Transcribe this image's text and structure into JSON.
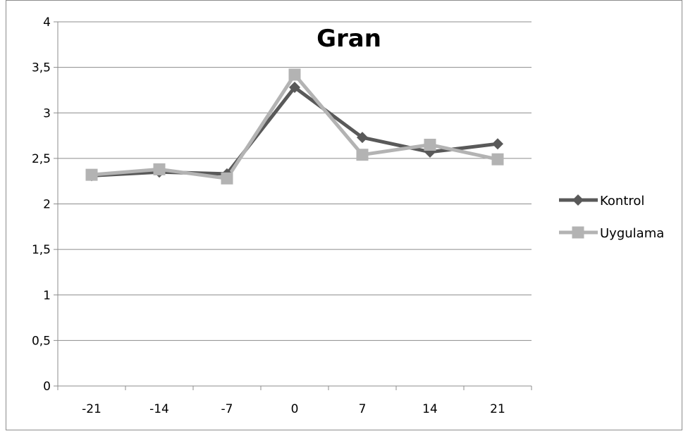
{
  "chart_data": {
    "type": "line",
    "title": "Gran",
    "xlabel": "",
    "ylabel": "",
    "categories": [
      "-21",
      "-14",
      "-7",
      "0",
      "7",
      "14",
      "21"
    ],
    "ylim": [
      0,
      4
    ],
    "yticks": [
      "0",
      "0,5",
      "1",
      "1,5",
      "2",
      "2,5",
      "3",
      "3,5",
      "4"
    ],
    "grid": true,
    "legend_position": "right",
    "series": [
      {
        "name": "Kontrol",
        "values": [
          2.31,
          2.35,
          2.33,
          3.28,
          2.73,
          2.57,
          2.66
        ],
        "color": "#595959",
        "marker": "diamond"
      },
      {
        "name": "Uygulama",
        "values": [
          2.32,
          2.38,
          2.28,
          3.42,
          2.54,
          2.65,
          2.49
        ],
        "color": "#b3b3b3",
        "marker": "square"
      }
    ]
  }
}
